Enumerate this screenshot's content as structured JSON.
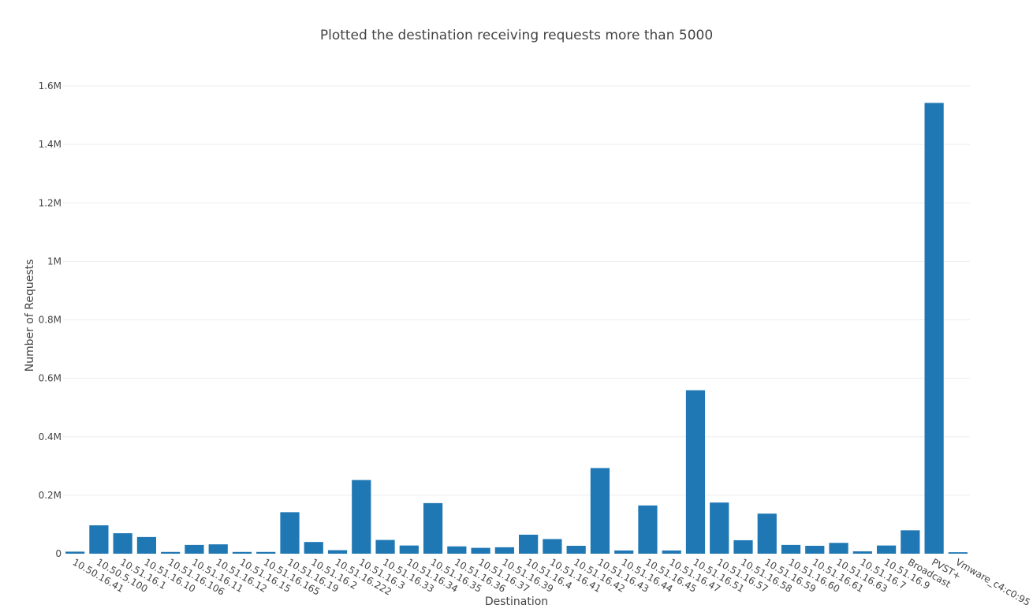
{
  "chart_data": {
    "type": "bar",
    "title": "Plotted the destination receiving requests more than 5000",
    "xlabel": "Destination",
    "ylabel": "Number of Requests",
    "ylim": [
      0,
      1600000
    ],
    "grid": true,
    "legend": "none",
    "bar_color": "#1f77b4",
    "y_ticks": [
      {
        "value": 0,
        "label": "0"
      },
      {
        "value": 200000,
        "label": "0.2M"
      },
      {
        "value": 400000,
        "label": "0.4M"
      },
      {
        "value": 600000,
        "label": "0.6M"
      },
      {
        "value": 800000,
        "label": "0.8M"
      },
      {
        "value": 1000000,
        "label": "1M"
      },
      {
        "value": 1200000,
        "label": "1.2M"
      },
      {
        "value": 1400000,
        "label": "1.4M"
      },
      {
        "value": 1600000,
        "label": "1.6M"
      }
    ],
    "categories": [
      "10.50.16.41",
      "10.50.5.100",
      "10.51.16.1",
      "10.51.16.10",
      "10.51.16.106",
      "10.51.16.11",
      "10.51.16.12",
      "10.51.16.15",
      "10.51.16.165",
      "10.51.16.19",
      "10.51.16.2",
      "10.51.16.222",
      "10.51.16.3",
      "10.51.16.33",
      "10.51.16.34",
      "10.51.16.35",
      "10.51.16.36",
      "10.51.16.37",
      "10.51.16.39",
      "10.51.16.4",
      "10.51.16.41",
      "10.51.16.42",
      "10.51.16.43",
      "10.51.16.44",
      "10.51.16.45",
      "10.51.16.47",
      "10.51.16.51",
      "10.51.16.57",
      "10.51.16.58",
      "10.51.16.59",
      "10.51.16.60",
      "10.51.16.61",
      "10.51.16.63",
      "10.51.16.7",
      "10.51.16.9",
      "Broadcast",
      "PVST+",
      "Vmware_c4:c0:95"
    ],
    "values": [
      7000,
      97000,
      70000,
      57000,
      6000,
      30000,
      32000,
      6000,
      6000,
      142000,
      40000,
      12000,
      252000,
      47000,
      28000,
      173000,
      25000,
      20000,
      22000,
      65000,
      50000,
      27000,
      293000,
      11000,
      165000,
      11000,
      559000,
      175000,
      46000,
      137000,
      30000,
      27000,
      37000,
      8000,
      28000,
      80000,
      1542000,
      5000
    ]
  }
}
